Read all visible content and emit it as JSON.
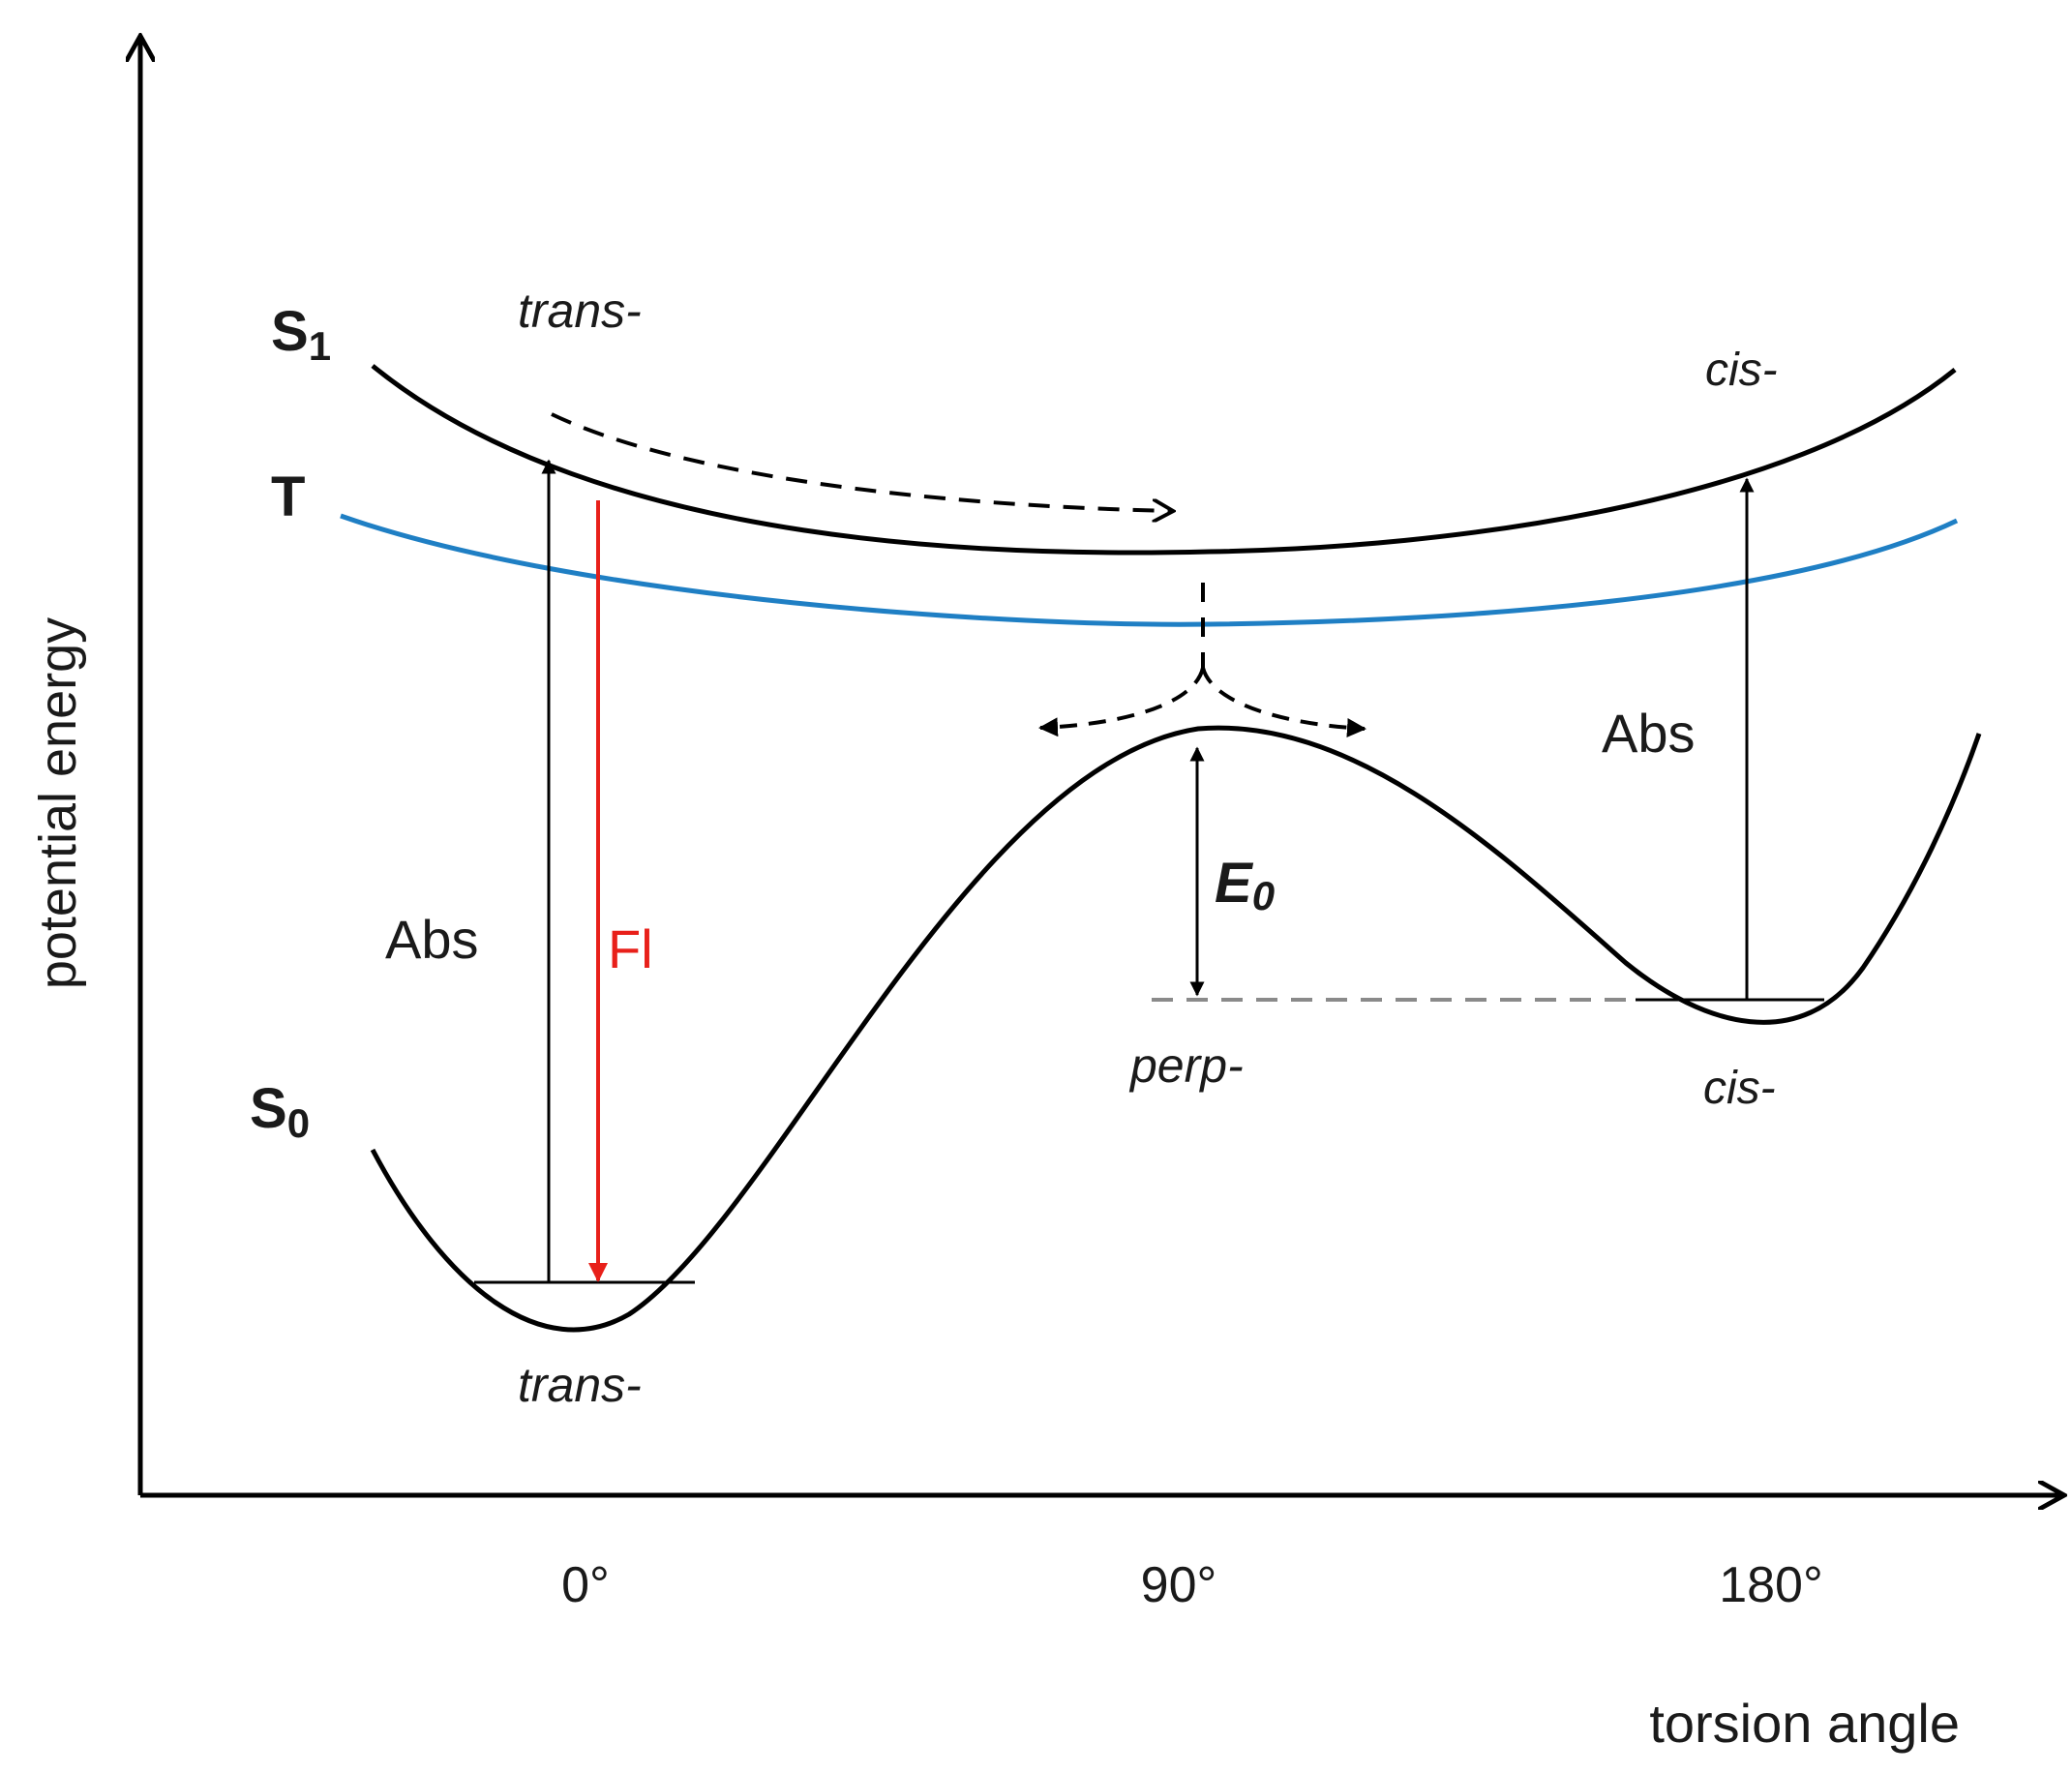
{
  "axes": {
    "y_label": "potential energy",
    "x_label": "torsion angle",
    "x_ticks": [
      "0°",
      "90°",
      "180°"
    ]
  },
  "curves": {
    "s1": {
      "label_main": "S",
      "label_sub": "1",
      "color": "#000000"
    },
    "t": {
      "label": "T",
      "color": "#1f7fc4"
    },
    "s0": {
      "label_main": "S",
      "label_sub": "0",
      "color": "#000000"
    }
  },
  "labels": {
    "trans_top": "trans-",
    "cis_top": "cis-",
    "perp": "perp-",
    "cis_bottom": "cis-",
    "trans_bottom": "trans-",
    "abs_left": "Abs",
    "fl": "Fl",
    "abs_right": "Abs",
    "e0_main": "E",
    "e0_sub": "0"
  },
  "colors": {
    "fluorescence": "#e8201a",
    "dashed_level": "#8a8a8a"
  }
}
